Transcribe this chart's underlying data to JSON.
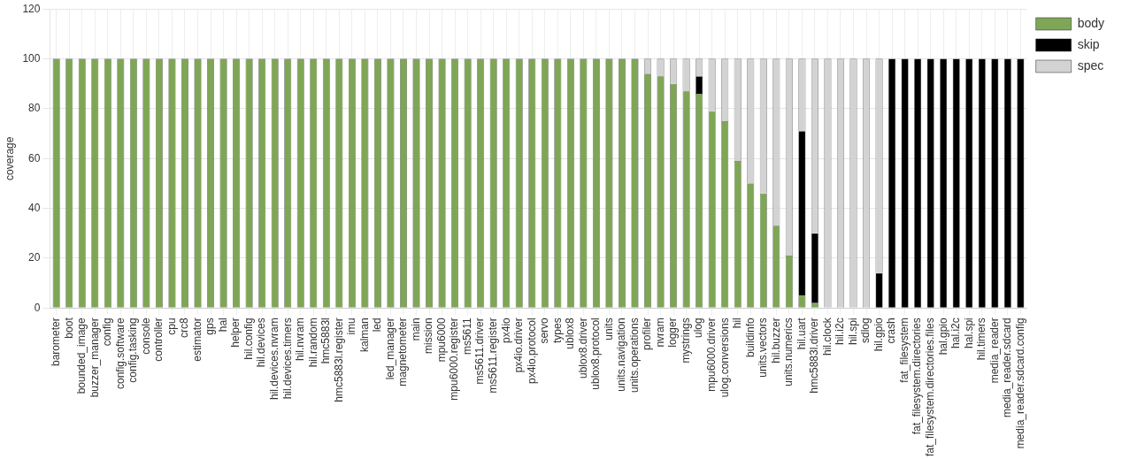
{
  "chart_data": {
    "type": "bar",
    "stacked": true,
    "ylabel": "coverage",
    "ylim": [
      0,
      120
    ],
    "yticks": [
      0,
      20,
      40,
      60,
      80,
      100,
      120
    ],
    "grid": true,
    "legend": "right",
    "categories": [
      "barometer",
      "boot",
      "bounded_image",
      "buzzer_manager",
      "config",
      "config.software",
      "config.tasking",
      "console",
      "controller",
      "cpu",
      "crc8",
      "estimator",
      "gps",
      "hal",
      "helper",
      "hil.config",
      "hil.devices",
      "hil.devices.nvram",
      "hil.devices.timers",
      "hil.nvram",
      "hil.random",
      "hmc5883l",
      "hmc5883l.register",
      "imu",
      "kalman",
      "led",
      "led_manager",
      "magnetometer",
      "main",
      "mission",
      "mpu6000",
      "mpu6000.register",
      "ms5611",
      "ms5611.driver",
      "ms5611.register",
      "px4io",
      "px4io.driver",
      "px4io.protocol",
      "servo",
      "types",
      "ublox8",
      "ublox8.driver",
      "ublox8.protocol",
      "units",
      "units.navigation",
      "units.operations",
      "profiler",
      "nvram",
      "logger",
      "mystrings",
      "ulog",
      "mpu6000.driver",
      "ulog.conversions",
      "hil",
      "buildinfo",
      "units.vectors",
      "hil.buzzer",
      "units.numerics",
      "hil.uart",
      "hmc5883l.driver",
      "hil.clock",
      "hil.i2c",
      "hil.spi",
      "sdlog",
      "hil.gpio",
      "crash",
      "fat_filesystem",
      "fat_filesystem.directories",
      "fat_filesystem.directories.files",
      "hal.gpio",
      "hal.i2c",
      "hal.spi",
      "hil.timers",
      "media_reader",
      "media_reader.sdcard",
      "media_reader.sdcard.config"
    ],
    "series": [
      {
        "name": "body",
        "color": "#7fa656",
        "values": [
          100,
          100,
          100,
          100,
          100,
          100,
          100,
          100,
          100,
          100,
          100,
          100,
          100,
          100,
          100,
          100,
          100,
          100,
          100,
          100,
          100,
          100,
          100,
          100,
          100,
          100,
          100,
          100,
          100,
          100,
          100,
          100,
          100,
          100,
          100,
          100,
          100,
          100,
          100,
          100,
          100,
          100,
          100,
          100,
          100,
          100,
          94,
          93,
          90,
          87,
          86,
          79,
          75,
          59,
          50,
          46,
          33,
          21,
          5,
          2,
          0,
          0,
          0,
          0,
          0,
          0,
          0,
          0,
          0,
          0,
          0,
          0,
          0,
          0,
          0,
          0
        ]
      },
      {
        "name": "skip",
        "color": "#000000",
        "values": [
          0,
          0,
          0,
          0,
          0,
          0,
          0,
          0,
          0,
          0,
          0,
          0,
          0,
          0,
          0,
          0,
          0,
          0,
          0,
          0,
          0,
          0,
          0,
          0,
          0,
          0,
          0,
          0,
          0,
          0,
          0,
          0,
          0,
          0,
          0,
          0,
          0,
          0,
          0,
          0,
          0,
          0,
          0,
          0,
          0,
          0,
          0,
          0,
          0,
          0,
          7,
          0,
          0,
          0,
          0,
          0,
          0,
          0,
          66,
          28,
          0,
          0,
          0,
          0,
          14,
          100,
          100,
          100,
          100,
          100,
          100,
          100,
          100,
          100,
          100,
          100
        ]
      },
      {
        "name": "spec",
        "color": "#d3d3d3",
        "values": [
          0,
          0,
          0,
          0,
          0,
          0,
          0,
          0,
          0,
          0,
          0,
          0,
          0,
          0,
          0,
          0,
          0,
          0,
          0,
          0,
          0,
          0,
          0,
          0,
          0,
          0,
          0,
          0,
          0,
          0,
          0,
          0,
          0,
          0,
          0,
          0,
          0,
          0,
          0,
          0,
          0,
          0,
          0,
          0,
          0,
          0,
          6,
          7,
          10,
          13,
          7,
          21,
          25,
          41,
          50,
          54,
          67,
          79,
          29,
          70,
          100,
          100,
          100,
          100,
          86,
          0,
          0,
          0,
          0,
          0,
          0,
          0,
          0,
          0,
          0,
          0
        ]
      }
    ]
  }
}
